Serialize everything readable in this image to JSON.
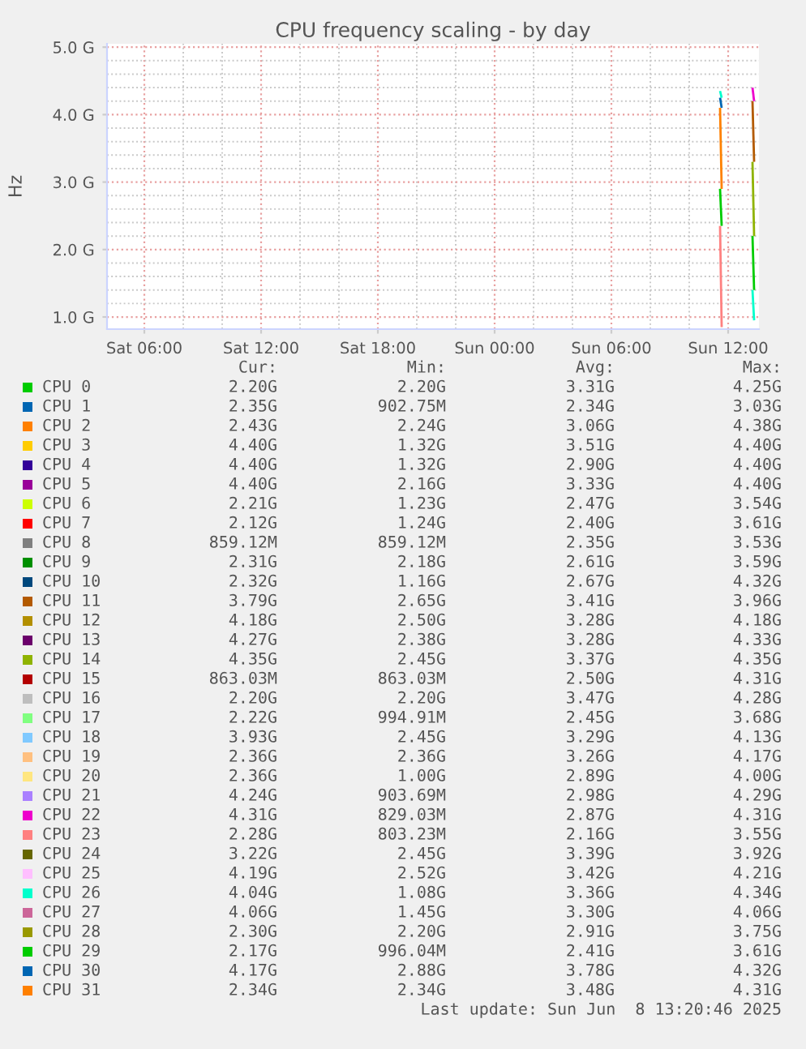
{
  "chart_data": {
    "type": "line",
    "title": "CPU frequency scaling - by day",
    "ylabel": "Hz",
    "x": [
      "2025-06-08T11:35",
      "2025-06-08T11:40"
    ],
    "xlim": [
      "2025-06-07T04:05",
      "2025-06-08T13:35"
    ],
    "xticks": [
      {
        "value": "2025-06-07T06:00",
        "label": "Sat 06:00"
      },
      {
        "value": "2025-06-07T12:00",
        "label": "Sat 12:00"
      },
      {
        "value": "2025-06-07T18:00",
        "label": "Sat 18:00"
      },
      {
        "value": "2025-06-08T00:00",
        "label": "Sun 00:00"
      },
      {
        "value": "2025-06-08T06:00",
        "label": "Sun 06:00"
      },
      {
        "value": "2025-06-08T12:00",
        "label": "Sun 12:00"
      }
    ],
    "ylim": [
      0.82,
      5.05
    ],
    "yticks": [
      {
        "value": 1,
        "label": "1.0 G"
      },
      {
        "value": 2,
        "label": "2.0 G"
      },
      {
        "value": 3,
        "label": "3.0 G"
      },
      {
        "value": 4,
        "label": "4.0 G"
      },
      {
        "value": 5,
        "label": "5.0 G"
      }
    ],
    "grid": true,
    "legend": "bottom",
    "line_style": "solid",
    "marker": "none",
    "series": [
      {
        "name": "CPU 0",
        "color": "#00cc00",
        "values": [
          2.9,
          2.35
        ]
      },
      {
        "name": "CPU 1",
        "color": "#0066b3",
        "values": [
          4.25,
          4.1
        ]
      },
      {
        "name": "CPU 2",
        "color": "#ff8000",
        "values": [
          4.1,
          2.9
        ]
      },
      {
        "name": "CPU 3",
        "color": "#ffcc00",
        "values": [
          null,
          null
        ]
      },
      {
        "name": "CPU 4",
        "color": "#330099",
        "values": [
          null,
          null
        ]
      },
      {
        "name": "CPU 5",
        "color": "#990099",
        "values": [
          null,
          null
        ]
      },
      {
        "name": "CPU 6",
        "color": "#ccff00",
        "values": [
          null,
          null
        ]
      },
      {
        "name": "CPU 7",
        "color": "#ff0000",
        "values": [
          null,
          null
        ]
      },
      {
        "name": "CPU 8",
        "color": "#808080",
        "values": [
          null,
          null
        ]
      },
      {
        "name": "CPU 9",
        "color": "#008f00",
        "values": [
          null,
          null
        ]
      },
      {
        "name": "CPU 10",
        "color": "#00487d",
        "values": [
          null,
          null
        ]
      },
      {
        "name": "CPU 11",
        "color": "#b35a00",
        "x": [
          "2025-06-08T13:15",
          "2025-06-08T13:20"
        ],
        "values": [
          4.2,
          3.3
        ]
      },
      {
        "name": "CPU 12",
        "color": "#b38f00",
        "values": [
          null,
          null
        ]
      },
      {
        "name": "CPU 13",
        "color": "#6b006b",
        "values": [
          null,
          null
        ]
      },
      {
        "name": "CPU 14",
        "color": "#8fb300",
        "x": [
          "2025-06-08T13:15",
          "2025-06-08T13:20"
        ],
        "values": [
          3.3,
          2.2
        ]
      },
      {
        "name": "CPU 15",
        "color": "#b30000",
        "values": [
          null,
          null
        ]
      },
      {
        "name": "CPU 16",
        "color": "#bebebe",
        "values": [
          null,
          null
        ]
      },
      {
        "name": "CPU 17",
        "color": "#80ff80",
        "values": [
          null,
          null
        ]
      },
      {
        "name": "CPU 18",
        "color": "#80c9ff",
        "values": [
          null,
          null
        ]
      },
      {
        "name": "CPU 19",
        "color": "#ffc080",
        "values": [
          null,
          null
        ]
      },
      {
        "name": "CPU 20",
        "color": "#ffe680",
        "values": [
          null,
          null
        ]
      },
      {
        "name": "CPU 21",
        "color": "#aa80ff",
        "values": [
          null,
          null
        ]
      },
      {
        "name": "CPU 22",
        "color": "#ee00cc",
        "x": [
          "2025-06-08T13:15",
          "2025-06-08T13:20"
        ],
        "values": [
          4.4,
          4.2
        ]
      },
      {
        "name": "CPU 23",
        "color": "#ff8080",
        "values": [
          2.35,
          0.85
        ]
      },
      {
        "name": "CPU 24",
        "color": "#666600",
        "values": [
          null,
          null
        ]
      },
      {
        "name": "CPU 25",
        "color": "#ffbfff",
        "values": [
          null,
          null
        ]
      },
      {
        "name": "CPU 26",
        "color": "#00ffcc",
        "x": [
          "2025-06-08T11:35",
          "2025-06-08T11:40",
          "2025-06-08T12:00",
          "2025-06-08T13:15",
          "2025-06-08T13:20"
        ],
        "values": [
          4.35,
          4.25,
          null,
          1.4,
          0.95
        ]
      },
      {
        "name": "CPU 27",
        "color": "#cc6699",
        "values": [
          null,
          null
        ]
      },
      {
        "name": "CPU 28",
        "color": "#999900",
        "values": [
          null,
          null
        ]
      },
      {
        "name": "CPU 29",
        "color": "#00cc00",
        "x": [
          "2025-06-08T13:15",
          "2025-06-08T13:20"
        ],
        "values": [
          2.2,
          1.4
        ]
      },
      {
        "name": "CPU 30",
        "color": "#0066b3",
        "values": [
          null,
          null
        ]
      },
      {
        "name": "CPU 31",
        "color": "#ff8000",
        "values": [
          null,
          null
        ]
      }
    ],
    "annotations": [
      "Cur:",
      "Min:",
      "Avg:",
      "Max:",
      "2.20G",
      "2.20G",
      "3.31G",
      "4.25G",
      "2.35G",
      "902.75M",
      "2.34G",
      "3.03G",
      "2.43G",
      "2.24G",
      "3.06G",
      "4.38G",
      "4.40G",
      "1.32G",
      "3.51G",
      "4.40G",
      "4.40G",
      "1.32G",
      "2.90G",
      "4.40G",
      "4.40G",
      "2.16G",
      "3.33G",
      "4.40G",
      "2.21G",
      "1.23G",
      "2.47G",
      "3.54G",
      "2.12G",
      "1.24G",
      "2.40G",
      "3.61G",
      "859.12M",
      "859.12M",
      "2.35G",
      "3.53G",
      "2.31G",
      "2.18G",
      "2.61G",
      "3.59G",
      "2.32G",
      "1.16G",
      "2.67G",
      "4.32G",
      "3.79G",
      "2.65G",
      "3.41G",
      "3.96G",
      "4.18G",
      "2.50G",
      "3.28G",
      "4.18G",
      "4.27G",
      "2.38G",
      "3.28G",
      "4.33G",
      "4.35G",
      "2.45G",
      "3.37G",
      "4.35G",
      "863.03M",
      "863.03M",
      "2.50G",
      "4.31G",
      "2.20G",
      "2.20G",
      "3.47G",
      "4.28G",
      "2.22G",
      "994.91M",
      "2.45G",
      "3.68G",
      "3.93G",
      "2.45G",
      "3.29G",
      "4.13G",
      "2.36G",
      "2.36G",
      "3.26G",
      "4.17G",
      "2.36G",
      "1.00G",
      "2.89G",
      "4.00G",
      "4.24G",
      "903.69M",
      "2.98G",
      "4.29G",
      "4.31G",
      "829.03M",
      "2.87G",
      "4.31G",
      "2.28G",
      "803.23M",
      "2.16G",
      "3.55G",
      "3.22G",
      "2.45G",
      "3.39G",
      "3.92G",
      "4.19G",
      "2.52G",
      "3.42G",
      "4.21G",
      "4.04G",
      "1.08G",
      "3.36G",
      "4.34G",
      "4.06G",
      "1.45G",
      "3.30G",
      "4.06G",
      "2.30G",
      "2.20G",
      "2.91G",
      "3.75G",
      "2.17G",
      "996.04M",
      "2.41G",
      "3.61G",
      "4.17G",
      "2.88G",
      "3.78G",
      "4.32G",
      "2.34G",
      "2.34G",
      "3.48G",
      "4.31G",
      "Last update: Sun Jun  8 13:20:46 2025"
    ]
  }
}
